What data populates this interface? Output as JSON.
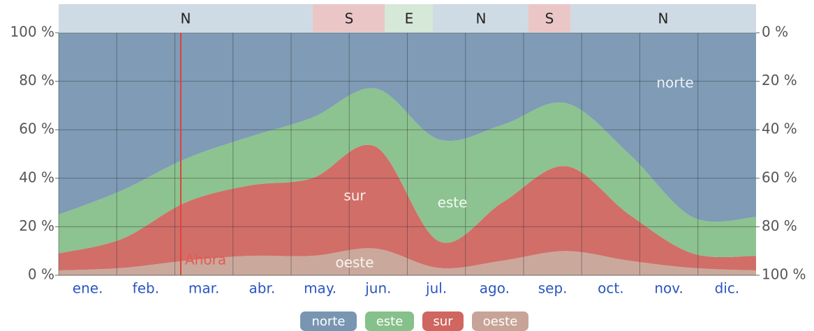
{
  "chart_data": {
    "type": "stacked_area",
    "categories": [
      "ene.",
      "feb.",
      "mar.",
      "abr.",
      "may.",
      "jun.",
      "jul.",
      "ago.",
      "sep.",
      "oct.",
      "nov.",
      "dic."
    ],
    "series": [
      {
        "name": "norte",
        "color": "#7896b2",
        "values": [
          75,
          65,
          52,
          43,
          35,
          23,
          44,
          38,
          29,
          50,
          76,
          76
        ]
      },
      {
        "name": "este",
        "color": "#86c08a",
        "values": [
          16,
          20,
          18,
          20,
          25,
          24,
          42,
          32,
          26,
          25,
          15,
          16
        ]
      },
      {
        "name": "sur",
        "color": "#cf6660",
        "values": [
          7,
          12,
          24,
          29,
          32,
          42,
          11,
          24,
          35,
          19,
          6,
          6
        ]
      },
      {
        "name": "oeste",
        "color": "#c7a497",
        "values": [
          2,
          3,
          6,
          8,
          8,
          11,
          3,
          6,
          10,
          6,
          3,
          2
        ]
      }
    ],
    "ylim": [
      0,
      100
    ],
    "yticks": [
      {
        "value": 0,
        "label": "0 %"
      },
      {
        "value": 20,
        "label": "20 %"
      },
      {
        "value": 40,
        "label": "40 %"
      },
      {
        "value": 60,
        "label": "60 %"
      },
      {
        "value": 80,
        "label": "80 %"
      },
      {
        "value": 100,
        "label": "100 %"
      }
    ],
    "y2lim": [
      100,
      0
    ],
    "y2ticks": [
      {
        "value": 0,
        "label": "0 %"
      },
      {
        "value": 20,
        "label": "20 %"
      },
      {
        "value": 40,
        "label": "40 %"
      },
      {
        "value": 60,
        "label": "60 %"
      },
      {
        "value": 80,
        "label": "80 %"
      },
      {
        "value": 100,
        "label": "100 %"
      }
    ],
    "bands": [
      "N",
      "S",
      "E",
      "N",
      "S",
      "N"
    ],
    "annotation": "Ahora",
    "grid": true
  }
}
